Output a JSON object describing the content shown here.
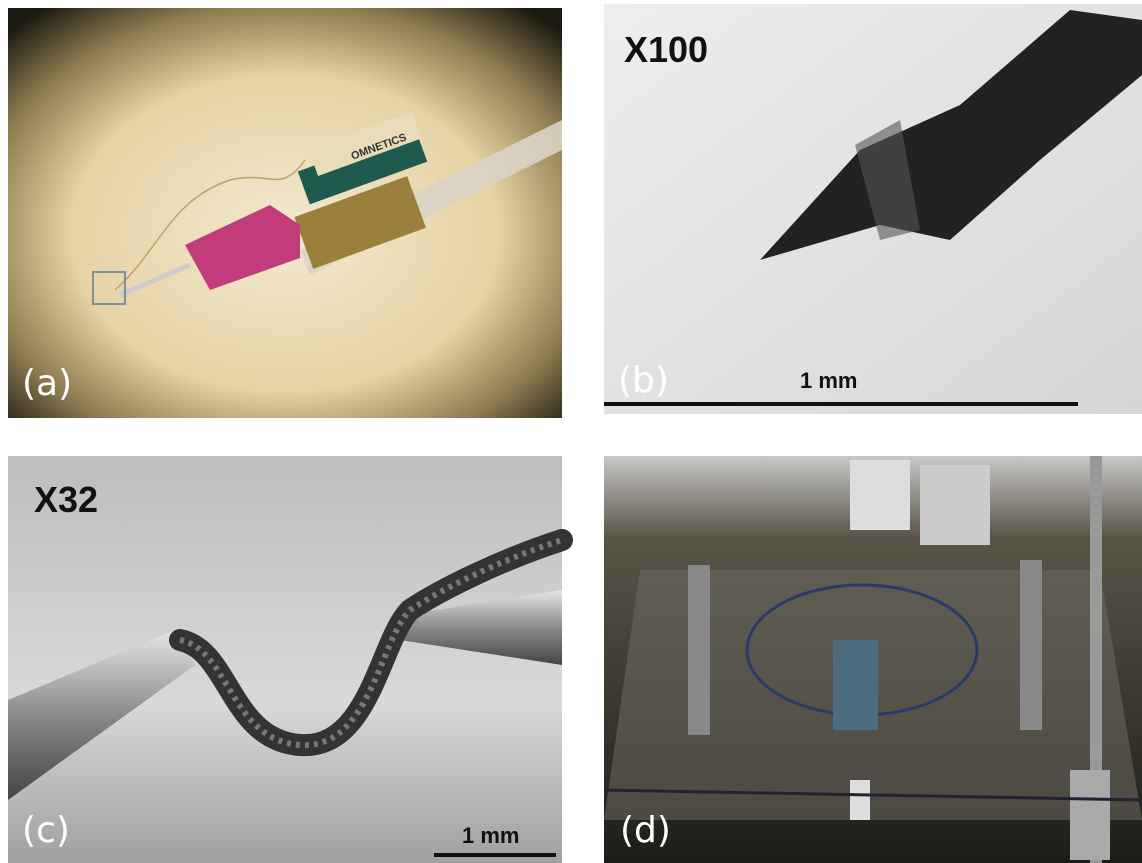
{
  "panels": [
    {
      "label": "(a)",
      "connector_text": "OMNETICS"
    },
    {
      "label": "(b)",
      "magnification": "X100",
      "scale_bar": "1 mm"
    },
    {
      "label": "(c)",
      "magnification": "X32",
      "scale_bar": "1 mm"
    },
    {
      "label": "(d)"
    }
  ]
}
